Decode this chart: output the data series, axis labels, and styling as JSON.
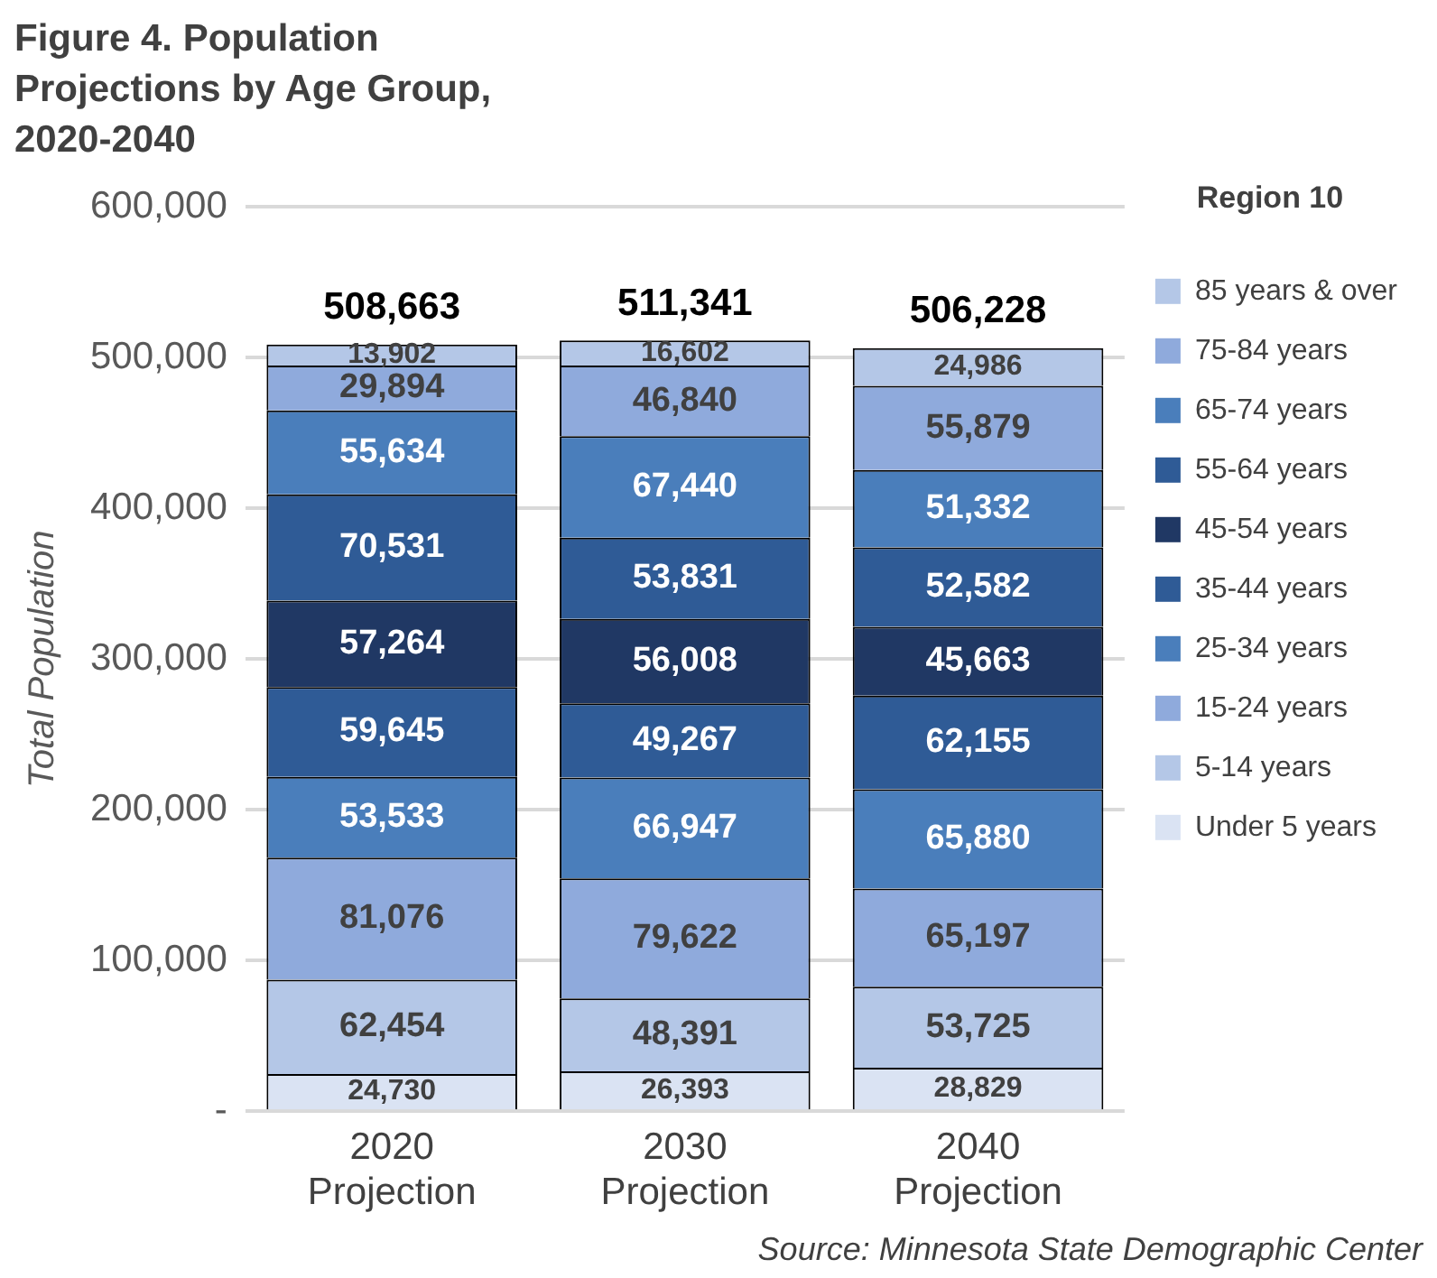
{
  "chart_data": {
    "type": "bar",
    "title": "Figure 4. Population Projections by Age Group, 2020-2040",
    "ylabel": "Total Population",
    "legend_title": "Region 10",
    "categories": [
      "2020 Projection",
      "2030 Projection",
      "2040 Projection"
    ],
    "stacked": true,
    "totals": [
      "508,663",
      "511,341",
      "506,228"
    ],
    "ylim": [
      0,
      600000
    ],
    "yticks": [
      {
        "value": 0,
        "label": "-"
      },
      {
        "value": 100000,
        "label": "100,000"
      },
      {
        "value": 200000,
        "label": "200,000"
      },
      {
        "value": 300000,
        "label": "300,000"
      },
      {
        "value": 400000,
        "label": "400,000"
      },
      {
        "value": 500000,
        "label": "500,000"
      },
      {
        "value": 600000,
        "label": "600,000"
      }
    ],
    "grid": "y",
    "legend": "right",
    "series": [
      {
        "name": "Under 5 years",
        "color": "#dae3f3",
        "values": [
          24730,
          26393,
          28829
        ],
        "value_labels": [
          "24,730",
          "26,393",
          "28,829"
        ]
      },
      {
        "name": "5-14 years",
        "color": "#b4c7e7",
        "values": [
          62454,
          48391,
          53725
        ],
        "value_labels": [
          "62,454",
          "48,391",
          "53,725"
        ]
      },
      {
        "name": "15-24 years",
        "color": "#8faadc",
        "values": [
          81076,
          79622,
          65197
        ],
        "value_labels": [
          "81,076",
          "79,622",
          "65,197"
        ]
      },
      {
        "name": "25-34 years",
        "color": "#4a7ebb",
        "values": [
          53533,
          66947,
          65880
        ],
        "value_labels": [
          "53,533",
          "66,947",
          "65,880"
        ]
      },
      {
        "name": "35-44 years",
        "color": "#2f5b96",
        "values": [
          59645,
          49267,
          62155
        ],
        "value_labels": [
          "59,645",
          "49,267",
          "62,155"
        ]
      },
      {
        "name": "45-54 years",
        "color": "#203864",
        "values": [
          57264,
          56008,
          45663
        ],
        "value_labels": [
          "57,264",
          "56,008",
          "45,663"
        ]
      },
      {
        "name": "55-64 years",
        "color": "#2f5b96",
        "values": [
          70531,
          53831,
          52582
        ],
        "value_labels": [
          "70,531",
          "53,831",
          "52,582"
        ]
      },
      {
        "name": "65-74 years",
        "color": "#4a7ebb",
        "values": [
          55634,
          67440,
          51332
        ],
        "value_labels": [
          "55,634",
          "67,440",
          "51,332"
        ]
      },
      {
        "name": "75-84 years",
        "color": "#8faadc",
        "values": [
          29894,
          46840,
          55879
        ],
        "value_labels": [
          "29,894",
          "46,840",
          "55,879"
        ]
      },
      {
        "name": "85 years & over",
        "color": "#b4c7e7",
        "values": [
          13902,
          16602,
          24986
        ],
        "value_labels": [
          "13,902",
          "16,602",
          "24,986"
        ]
      }
    ],
    "annotations": [
      "Source: Minnesota State Demographic Center"
    ]
  }
}
